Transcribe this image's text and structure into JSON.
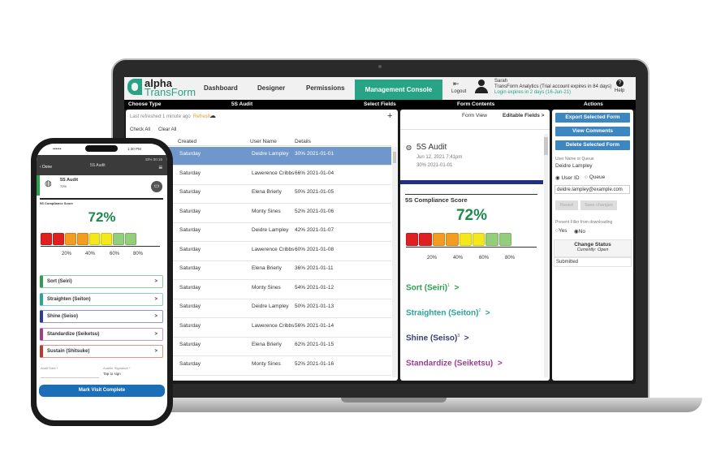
{
  "app": {
    "logo_top": "alpha",
    "logo_bottom": "TransForm",
    "nav": [
      "Dashboard",
      "Designer",
      "Permissions",
      "Management Console"
    ],
    "logout": "Logout",
    "user": "Sarah",
    "account": "TransForm Analytics (Trial account expires in 84 days)",
    "login_expiry": "Login expires in 2 days (16-Jun-21)",
    "help": "Help"
  },
  "bar": {
    "choose_type": "Choose Type",
    "form_type": "5S Audit",
    "select_fields": "Select Fields",
    "form_contents": "Form Contents",
    "actions": "Actions"
  },
  "list": {
    "refreshed": "Last refreshed 1 minute ago",
    "refresh": "Refresh",
    "add": "+",
    "check_all": "Check All",
    "clear_all": "Clear All",
    "columns": [
      "Created",
      "User Name",
      "Details"
    ],
    "rows": [
      {
        "created": "Saturday",
        "user": "Deidre Lampley",
        "details": "30% 2021-01-01",
        "selected": true
      },
      {
        "created": "Saturday",
        "user": "Lawerence Cribbs",
        "details": "66% 2021-01-04"
      },
      {
        "created": "Saturday",
        "user": "Elena Brierly",
        "details": "50% 2021-01-05"
      },
      {
        "created": "Saturday",
        "user": "Monty Sines",
        "details": "52% 2021-01-06"
      },
      {
        "created": "Saturday",
        "user": "Deidre Lampley",
        "details": "42% 2021-01-07"
      },
      {
        "created": "Saturday",
        "user": "Lawerence Cribbs",
        "details": "60% 2021-01-08"
      },
      {
        "created": "Saturday",
        "user": "Elena Brierly",
        "details": "36% 2021-01-11"
      },
      {
        "created": "Saturday",
        "user": "Monty Sines",
        "details": "54% 2021-01-12"
      },
      {
        "created": "Saturday",
        "user": "Deidre Lampley",
        "details": "50% 2021-01-13"
      },
      {
        "created": "Saturday",
        "user": "Lawerence Cribbs",
        "details": "56% 2021-01-14"
      },
      {
        "created": "Saturday",
        "user": "Elena Brierly",
        "details": "62% 2021-01-15"
      },
      {
        "created": "Saturday",
        "user": "Monty Sines",
        "details": "52% 2021-01-16"
      }
    ]
  },
  "form": {
    "form_view": "Form View",
    "editable_fields": "Editable Fields",
    "chevron": ">",
    "title": "5S Audit",
    "date": "Jun 12, 2021 7:41pm",
    "summary": "30% 2021-01-01",
    "score_label": "5S Compliance Score",
    "score": "72%",
    "score_value": 72,
    "ticks": [
      "20%",
      "40%",
      "60%",
      "80%"
    ],
    "sections": [
      {
        "label": "Sort (Seiri)",
        "sup": "1",
        "color": "#2e9e4f"
      },
      {
        "label": "Straighten (Seiton)",
        "sup": "2",
        "color": "#2aa39a"
      },
      {
        "label": "Shine (Seiso)",
        "sup": "3",
        "color": "#3a3f6e"
      },
      {
        "label": "Standardize (Seiketsu)",
        "sup": "",
        "color": "#9c3f8c"
      }
    ],
    "gauge_colors": [
      "#e02020",
      "#e02020",
      "#f39c1f",
      "#f39c1f",
      "#f2e81c",
      "#f2e81c",
      "#93cf7a",
      "#93cf7a"
    ]
  },
  "actions": {
    "export": "Export Selected Form",
    "comments": "View Comments",
    "delete": "Delete Selected Form",
    "user_label": "User Name or Queue",
    "user_value": "Deidre Lampley",
    "radio_user": "User ID",
    "radio_queue": "Queue",
    "email": "deidre.lampley@example.com",
    "revert": "Revert",
    "save": "Save changes",
    "prevent_label": "Prevent Filler from downloading",
    "yes": "Yes",
    "no": "No",
    "status_title": "Change Status",
    "status_current": "Currently: Open",
    "status_option": "Submitted"
  },
  "phone": {
    "carrier": "••••••",
    "time": "1:30 PM",
    "status": "43% 00:15",
    "done": "Done",
    "title": "5S Audit",
    "form_title": "5S Audit",
    "form_score": "72%",
    "score_label": "5S Compliance Score",
    "score": "72%",
    "ticks": [
      "20%",
      "40%",
      "60%",
      "80%"
    ],
    "items": [
      {
        "label": "Sort (Seiri)",
        "color": "#2e9e4f"
      },
      {
        "label": "Straighten (Seiton)",
        "color": "#2aa39a"
      },
      {
        "label": "Shine (Seiso)",
        "color": "#2b3a9c"
      },
      {
        "label": "Standardize (Seiketsu)",
        "color": "#9c3f8c"
      },
      {
        "label": "Sustain (Shitsuke)",
        "color": "#c0392b"
      }
    ],
    "audit_date": "Audit Date *",
    "auditor_sig": "Auditor Signature *",
    "tap_sign": "Tap to sign",
    "complete": "Mark Visit Complete"
  }
}
